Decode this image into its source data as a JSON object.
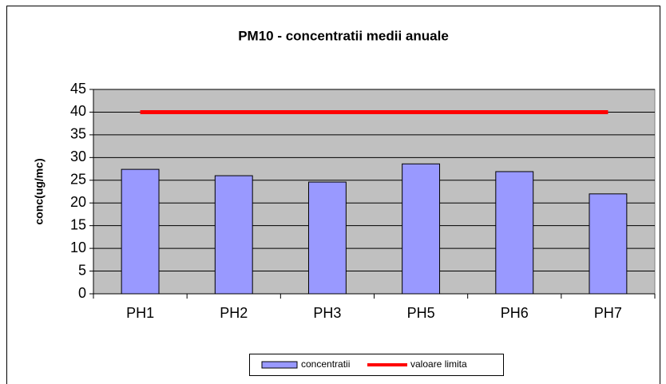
{
  "chart_data": {
    "type": "bar",
    "title": "PM10 - concentratii medii anuale",
    "y_label": "conc(ug/mc)",
    "categories": [
      "PH1",
      "PH2",
      "PH3",
      "PH5",
      "PH6",
      "PH7"
    ],
    "series": [
      {
        "name": "concentratii",
        "type": "bar",
        "color": "#9999ff",
        "values": [
          27.4,
          26.0,
          24.6,
          28.6,
          26.9,
          22.0
        ]
      },
      {
        "name": "valoare limita",
        "type": "line",
        "color": "#ff0000",
        "values": [
          40,
          40,
          40,
          40,
          40,
          40
        ]
      }
    ],
    "ylim": [
      0,
      45
    ],
    "yticks": [
      0,
      5,
      10,
      15,
      20,
      25,
      30,
      35,
      40,
      45
    ],
    "grid": true,
    "legend": "bottom"
  }
}
